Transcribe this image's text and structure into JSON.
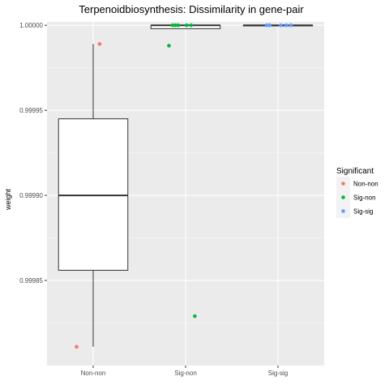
{
  "chart_data": {
    "type": "boxplot",
    "title": "Terpenoidbiosynthesis: Dissimilarity in gene-pair",
    "xlabel": "",
    "ylabel": "weight",
    "categories": [
      "Non-non",
      "Sig-non",
      "Sig-sig"
    ],
    "ylim": [
      0.9998,
      1.000002
    ],
    "y_ticks": [
      0.99985,
      0.9999,
      0.99995,
      1.0
    ],
    "y_tick_labels": [
      "0.99985",
      "0.99990",
      "0.99995",
      "1.00000"
    ],
    "grid": true,
    "legend": {
      "title": "Significant",
      "placement": "right",
      "entries": [
        {
          "label": "Non-non",
          "color": "#F8766D"
        },
        {
          "label": "Sig-non",
          "color": "#00BA38"
        },
        {
          "label": "Sig-sig",
          "color": "#619CFF"
        }
      ]
    },
    "boxes": [
      {
        "category": "Non-non",
        "whisker_low": 0.999811,
        "q1": 0.999856,
        "median": 0.9999,
        "q3": 0.999945,
        "whisker_high": 0.999989
      },
      {
        "category": "Sig-non",
        "whisker_low": 0.999998,
        "q1": 0.999998,
        "median": 1.0,
        "q3": 1.0,
        "whisker_high": 1.0
      },
      {
        "category": "Sig-sig",
        "whisker_low": 1.0,
        "q1": 1.0,
        "median": 1.0,
        "q3": 1.0,
        "whisker_high": 1.0
      }
    ],
    "points": [
      {
        "category": "Non-non",
        "jitter": 0.07,
        "y": 0.999989,
        "series": "Non-non"
      },
      {
        "category": "Non-non",
        "jitter": -0.18,
        "y": 0.999811,
        "series": "Non-non"
      },
      {
        "category": "Sig-non",
        "jitter": -0.18,
        "y": 0.999988,
        "series": "Sig-non"
      },
      {
        "category": "Sig-non",
        "jitter": 0.1,
        "y": 0.999829,
        "series": "Sig-non"
      },
      {
        "category": "Sig-non",
        "jitter": -0.14,
        "y": 1.0,
        "series": "Sig-non"
      },
      {
        "category": "Sig-non",
        "jitter": -0.11,
        "y": 1.0,
        "series": "Sig-non"
      },
      {
        "category": "Sig-non",
        "jitter": -0.08,
        "y": 1.0,
        "series": "Sig-non"
      },
      {
        "category": "Sig-non",
        "jitter": 0.01,
        "y": 1.0,
        "series": "Sig-non"
      },
      {
        "category": "Sig-non",
        "jitter": 0.06,
        "y": 1.0,
        "series": "Sig-non"
      },
      {
        "category": "Sig-sig",
        "jitter": -0.12,
        "y": 1.0,
        "series": "Sig-sig"
      },
      {
        "category": "Sig-sig",
        "jitter": -0.09,
        "y": 1.0,
        "series": "Sig-sig"
      },
      {
        "category": "Sig-sig",
        "jitter": 0.03,
        "y": 1.0,
        "series": "Sig-sig"
      },
      {
        "category": "Sig-sig",
        "jitter": 0.09,
        "y": 1.0,
        "series": "Sig-sig"
      },
      {
        "category": "Sig-sig",
        "jitter": 0.14,
        "y": 1.0,
        "series": "Sig-sig"
      }
    ],
    "colors": {
      "panel_background": "#EBEBEB",
      "grid_major": "#FFFFFF",
      "box_fill": "#FFFFFF",
      "box_line": "#333333"
    }
  }
}
